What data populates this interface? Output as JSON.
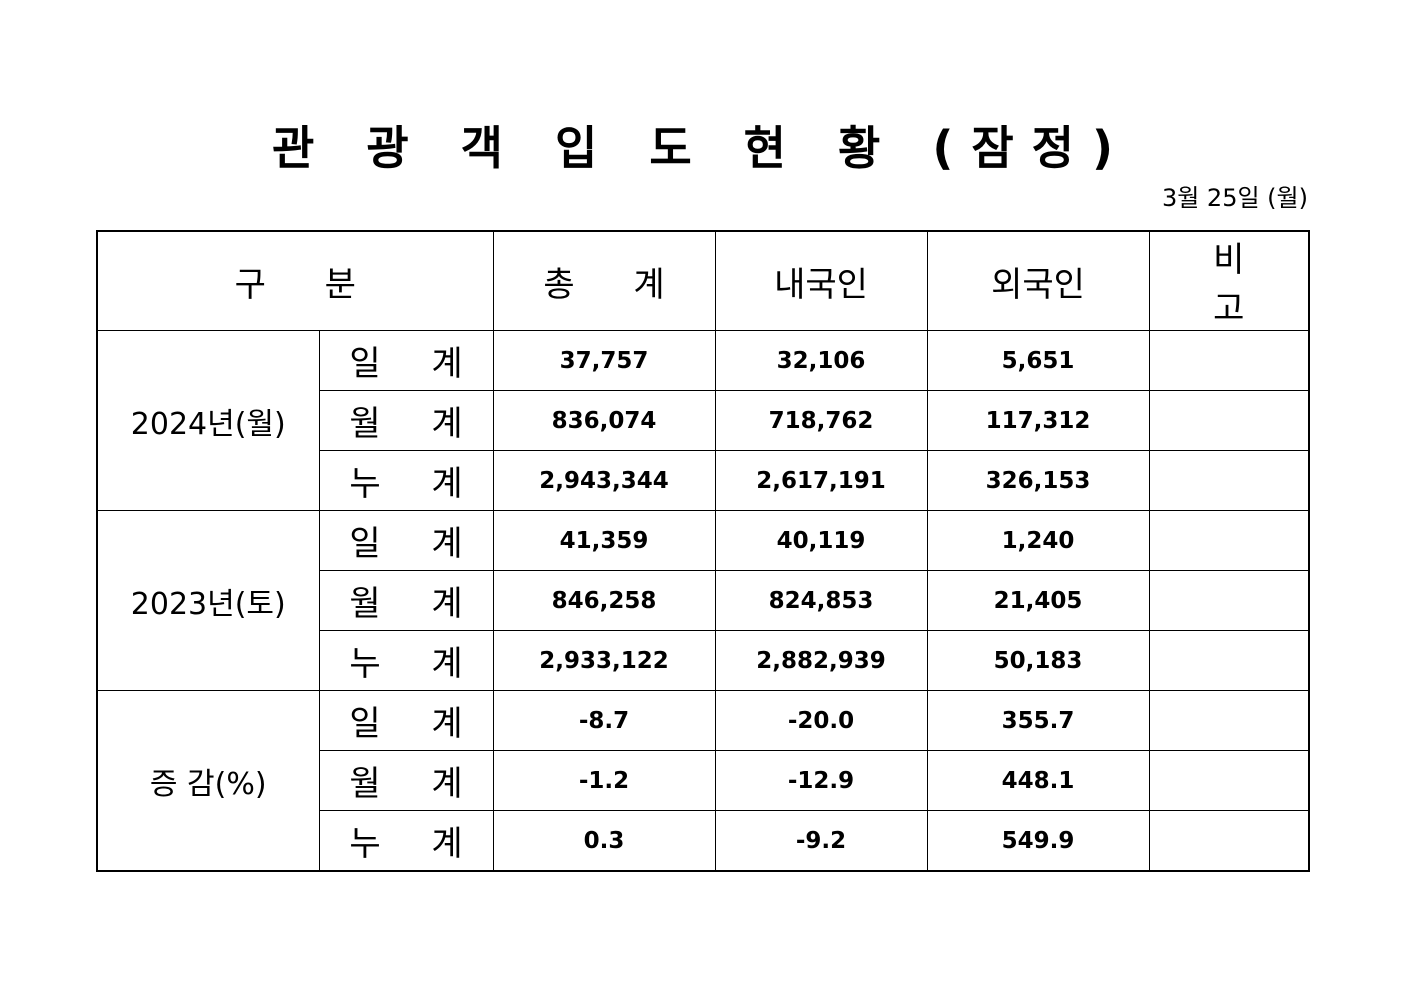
{
  "title": "관 광 객 입 도 현 황 (잠정)",
  "date": "3월 25일 (월)",
  "headers": [
    "구 분",
    "총 계",
    "내국인",
    "외국인",
    "비 고"
  ],
  "groups": [
    {
      "label": "2024년(월)",
      "rows": [
        {
          "sub": "일 계",
          "total": "37,757",
          "domestic": "32,106",
          "foreign": "5,651",
          "note": ""
        },
        {
          "sub": "월 계",
          "total": "836,074",
          "domestic": "718,762",
          "foreign": "117,312",
          "note": ""
        },
        {
          "sub": "누 계",
          "total": "2,943,344",
          "domestic": "2,617,191",
          "foreign": "326,153",
          "note": ""
        }
      ]
    },
    {
      "label": "2023년(토)",
      "rows": [
        {
          "sub": "일 계",
          "total": "41,359",
          "domestic": "40,119",
          "foreign": "1,240",
          "note": ""
        },
        {
          "sub": "월 계",
          "total": "846,258",
          "domestic": "824,853",
          "foreign": "21,405",
          "note": ""
        },
        {
          "sub": "누 계",
          "total": "2,933,122",
          "domestic": "2,882,939",
          "foreign": "50,183",
          "note": ""
        }
      ]
    },
    {
      "label": "증 감(%)",
      "rows": [
        {
          "sub": "일 계",
          "total": "-8.7",
          "domestic": "-20.0",
          "foreign": "355.7",
          "note": ""
        },
        {
          "sub": "월 계",
          "total": "-1.2",
          "domestic": "-12.9",
          "foreign": "448.1",
          "note": ""
        },
        {
          "sub": "누 계",
          "total": "0.3",
          "domestic": "-9.2",
          "foreign": "549.9",
          "note": ""
        }
      ]
    }
  ]
}
